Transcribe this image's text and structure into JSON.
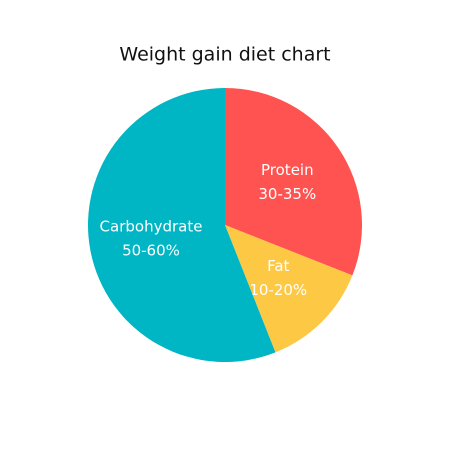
{
  "chart_data": {
    "type": "pie",
    "title": "Weight gain diet chart",
    "categories": [
      "Protein",
      "Fat",
      "Carbohydrate"
    ],
    "values": [
      31,
      13,
      56
    ],
    "value_labels": [
      "30-35%",
      "10-20%",
      "50-60%"
    ],
    "colors": [
      "#fe5350",
      "#fdc844",
      "#00b5c4"
    ]
  }
}
